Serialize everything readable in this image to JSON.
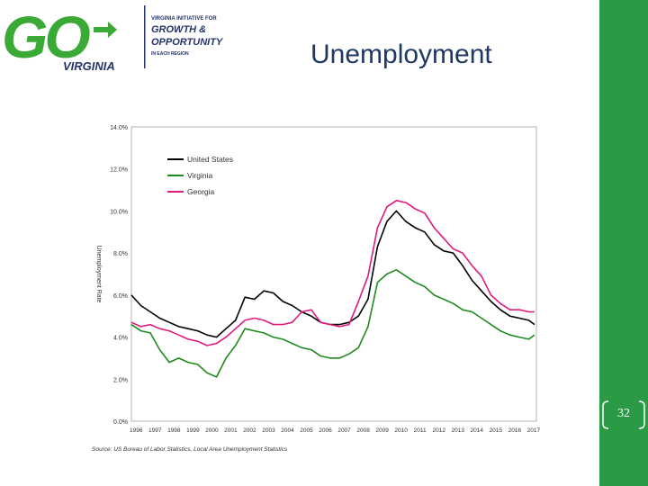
{
  "logo": {
    "go_text": "GO",
    "state_text": "VIRGINIA",
    "tagline_line1": "VIRGINIA INITIATIVE FOR",
    "tagline_line2": "GROWTH &",
    "tagline_line3": "OPPORTUNITY",
    "tagline_line4": "IN EACH REGION",
    "colors": {
      "green": "#3aa935",
      "navy": "#24336b"
    }
  },
  "slide": {
    "title": "Unemployment",
    "page_number": "32"
  },
  "chart_data": {
    "type": "line",
    "title": "",
    "xlabel": "",
    "ylabel": "Unemployment Rate",
    "ylim": [
      0,
      14
    ],
    "yticks": [
      "0.0%",
      "2.0%",
      "4.0%",
      "6.0%",
      "8.0%",
      "10.0%",
      "12.0%",
      "14.0%"
    ],
    "xticks": [
      "1996",
      "1997",
      "1998",
      "1999",
      "2000",
      "2001",
      "2002",
      "2003",
      "2004",
      "2005",
      "2006",
      "2007",
      "2008",
      "2009",
      "2010",
      "2011",
      "2012",
      "2013",
      "2014",
      "2015",
      "2016",
      "2017"
    ],
    "xlim": [
      1996.0,
      2017.4
    ],
    "grid": false,
    "legend_position": "top-left",
    "source": "Source: US Bureau of Labor Statistics, Local Area Unemployment Statistics",
    "series": [
      {
        "name": "United States",
        "color": "#000000",
        "x": [
          1996.0,
          1996.5,
          1997.0,
          1997.5,
          1998.0,
          1998.5,
          1999.0,
          1999.5,
          2000.0,
          2000.5,
          2001.0,
          2001.5,
          2002.0,
          2002.5,
          2003.0,
          2003.5,
          2004.0,
          2004.5,
          2005.0,
          2005.5,
          2006.0,
          2006.5,
          2007.0,
          2007.5,
          2008.0,
          2008.5,
          2009.0,
          2009.5,
          2010.0,
          2010.5,
          2011.0,
          2011.5,
          2012.0,
          2012.5,
          2013.0,
          2013.5,
          2014.0,
          2014.5,
          2015.0,
          2015.5,
          2016.0,
          2016.5,
          2017.0,
          2017.3
        ],
        "y": [
          6.0,
          5.5,
          5.2,
          4.9,
          4.7,
          4.5,
          4.4,
          4.3,
          4.1,
          4.0,
          4.4,
          4.8,
          5.9,
          5.8,
          6.2,
          6.1,
          5.7,
          5.5,
          5.2,
          5.0,
          4.7,
          4.6,
          4.6,
          4.7,
          5.0,
          5.8,
          8.3,
          9.5,
          10.0,
          9.5,
          9.2,
          9.0,
          8.4,
          8.1,
          8.0,
          7.4,
          6.7,
          6.2,
          5.7,
          5.3,
          5.0,
          4.9,
          4.8,
          4.6
        ]
      },
      {
        "name": "Virginia",
        "color": "#1f8a1f",
        "x": [
          1996.0,
          1996.5,
          1997.0,
          1997.5,
          1998.0,
          1998.5,
          1999.0,
          1999.5,
          2000.0,
          2000.5,
          2001.0,
          2001.5,
          2002.0,
          2002.5,
          2003.0,
          2003.5,
          2004.0,
          2004.5,
          2005.0,
          2005.5,
          2006.0,
          2006.5,
          2007.0,
          2007.5,
          2008.0,
          2008.5,
          2009.0,
          2009.5,
          2010.0,
          2010.5,
          2011.0,
          2011.5,
          2012.0,
          2012.5,
          2013.0,
          2013.5,
          2014.0,
          2014.5,
          2015.0,
          2015.5,
          2016.0,
          2016.5,
          2017.0,
          2017.3
        ],
        "y": [
          4.6,
          4.3,
          4.2,
          3.4,
          2.8,
          3.0,
          2.8,
          2.7,
          2.3,
          2.1,
          3.0,
          3.6,
          4.4,
          4.3,
          4.2,
          4.0,
          3.9,
          3.7,
          3.5,
          3.4,
          3.1,
          3.0,
          3.0,
          3.2,
          3.5,
          4.5,
          6.6,
          7.0,
          7.2,
          6.9,
          6.6,
          6.4,
          6.0,
          5.8,
          5.6,
          5.3,
          5.2,
          4.9,
          4.6,
          4.3,
          4.1,
          4.0,
          3.9,
          4.1
        ]
      },
      {
        "name": "Georgia",
        "color": "#e0197e",
        "x": [
          1996.0,
          1996.5,
          1997.0,
          1997.5,
          1998.0,
          1998.5,
          1999.0,
          1999.5,
          2000.0,
          2000.5,
          2001.0,
          2001.5,
          2002.0,
          2002.5,
          2003.0,
          2003.5,
          2004.0,
          2004.5,
          2005.0,
          2005.5,
          2006.0,
          2006.5,
          2007.0,
          2007.5,
          2008.0,
          2008.5,
          2009.0,
          2009.5,
          2010.0,
          2010.5,
          2011.0,
          2011.5,
          2012.0,
          2012.5,
          2013.0,
          2013.5,
          2014.0,
          2014.5,
          2015.0,
          2015.5,
          2016.0,
          2016.5,
          2017.0,
          2017.3
        ],
        "y": [
          4.7,
          4.5,
          4.6,
          4.4,
          4.3,
          4.1,
          3.9,
          3.8,
          3.6,
          3.7,
          4.0,
          4.4,
          4.8,
          4.9,
          4.8,
          4.6,
          4.6,
          4.7,
          5.2,
          5.3,
          4.7,
          4.6,
          4.5,
          4.6,
          5.7,
          6.9,
          9.2,
          10.2,
          10.5,
          10.4,
          10.1,
          9.9,
          9.2,
          8.7,
          8.2,
          8.0,
          7.4,
          6.9,
          6.0,
          5.6,
          5.3,
          5.3,
          5.2,
          5.2
        ]
      }
    ]
  }
}
